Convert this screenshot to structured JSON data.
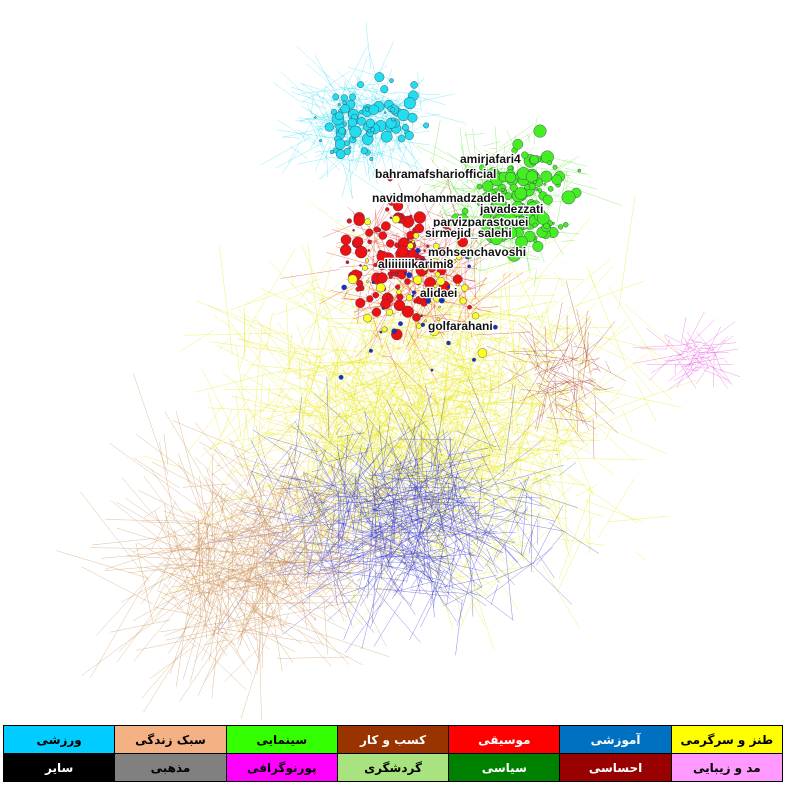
{
  "node_labels": [
    {
      "text": "amirjafari4"
    },
    {
      "text": "bahramafshariofficial"
    },
    {
      "text": "navidmohammadzadeh"
    },
    {
      "text": "javadezzati"
    },
    {
      "text": "parvizparastouei"
    },
    {
      "text": "sirmejid_salehi"
    },
    {
      "text": "mohsenchavoshi"
    },
    {
      "text": "aliiiiiiikarimi8"
    },
    {
      "text": "alidaei"
    },
    {
      "text": "golfarahani"
    }
  ],
  "legend": [
    {
      "label": "طنز و سرگرمی",
      "color": "#ffff00"
    },
    {
      "label": "آموزشی",
      "color": "#0070c0"
    },
    {
      "label": "موسیقی",
      "color": "#ff0000"
    },
    {
      "label": "کسب و کار",
      "color": "#993300"
    },
    {
      "label": "سینمایی",
      "color": "#33ff00"
    },
    {
      "label": "سبک زندگی",
      "color": "#f4b183"
    },
    {
      "label": "ورزشی",
      "color": "#00ccff"
    },
    {
      "label": "مد و زیبایی",
      "color": "#ff99ff"
    },
    {
      "label": "احساسی",
      "color": "#990000"
    },
    {
      "label": "سیاسی",
      "color": "#008000"
    },
    {
      "label": "گردشگری",
      "color": "#a9e37f"
    },
    {
      "label": "پورنوگرافی",
      "color": "#ff00ff"
    },
    {
      "label": "مذهبی",
      "color": "#808080"
    },
    {
      "label": "سایر",
      "color": "#000000"
    }
  ]
}
